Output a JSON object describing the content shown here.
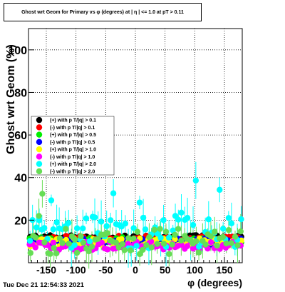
{
  "chart_data": {
    "type": "scatter",
    "title": "Ghost wrt Geom for Primary vs φ (degrees) at | η | <= 1.0 at pT > 0.11",
    "xlabel": "φ (degrees)",
    "ylabel": "Ghost wrt Geom (%)",
    "xlim": [
      -180,
      180
    ],
    "ylim": [
      0,
      110
    ],
    "x_ticks": [
      -150,
      -100,
      -50,
      0,
      50,
      100,
      150
    ],
    "y_ticks": [
      20,
      40,
      60,
      80,
      100
    ],
    "grid": true,
    "legend_position": "upper-left",
    "bins": 72,
    "series": [
      {
        "name": "(+) with p T/|q| > 0.1",
        "color": "#000000",
        "base": 12,
        "jitter": 1.0,
        "err": 1.0
      },
      {
        "name": "(-) with p T/|q| > 0.1",
        "color": "#ff0000",
        "base": 11.5,
        "jitter": 1.2,
        "err": 1.0
      },
      {
        "name": "(+) with p T/|q| > 0.5",
        "color": "#00ee00",
        "base": 10.5,
        "jitter": 1.5,
        "err": 1.2
      },
      {
        "name": "(-) with p T/|q| > 0.5",
        "color": "#0000ff",
        "base": 10,
        "jitter": 1.5,
        "err": 1.2
      },
      {
        "name": "(+) with p T/|q| > 1.0",
        "color": "#ffff00",
        "base": 9.5,
        "jitter": 2.0,
        "err": 1.5
      },
      {
        "name": "(-) with p T/|q| > 1.0",
        "color": "#ff00ff",
        "base": 8,
        "jitter": 2.0,
        "err": 1.5
      },
      {
        "name": "(+) with p T/|q| > 2.0",
        "color": "#00ffff",
        "base": 14,
        "jitter": 8.0,
        "err": 5.0
      },
      {
        "name": "(-) with p T/|q| > 2.0",
        "color": "#66dd55",
        "base": 10,
        "jitter": 6.0,
        "err": 4.0
      }
    ]
  },
  "footer": {
    "timestamp": "Tue Dec 21 12:54:33 2021"
  }
}
